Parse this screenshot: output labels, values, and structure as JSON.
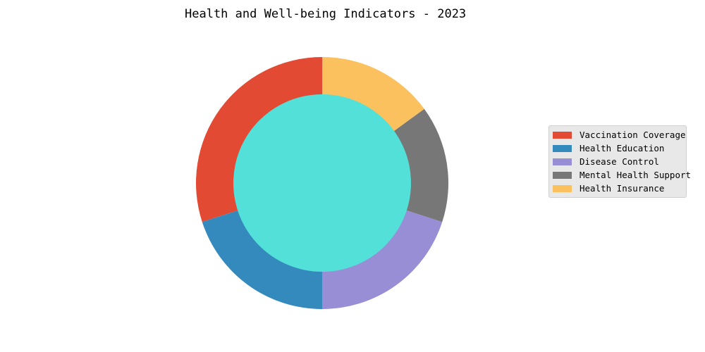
{
  "chart_data": {
    "type": "pie",
    "variant": "donut",
    "title": "Health and Well-being Indicators - 2023",
    "slices": [
      {
        "label": "Vaccination Coverage",
        "value": 30,
        "color": "#E24A33"
      },
      {
        "label": "Health Education",
        "value": 20,
        "color": "#348ABD"
      },
      {
        "label": "Disease Control",
        "value": 20,
        "color": "#988ED5"
      },
      {
        "label": "Mental Health Support",
        "value": 15,
        "color": "#777777"
      },
      {
        "label": "Health Insurance",
        "value": 15,
        "color": "#FBC15E"
      }
    ],
    "center_color": "#52E0D8",
    "legend_position": "right"
  }
}
